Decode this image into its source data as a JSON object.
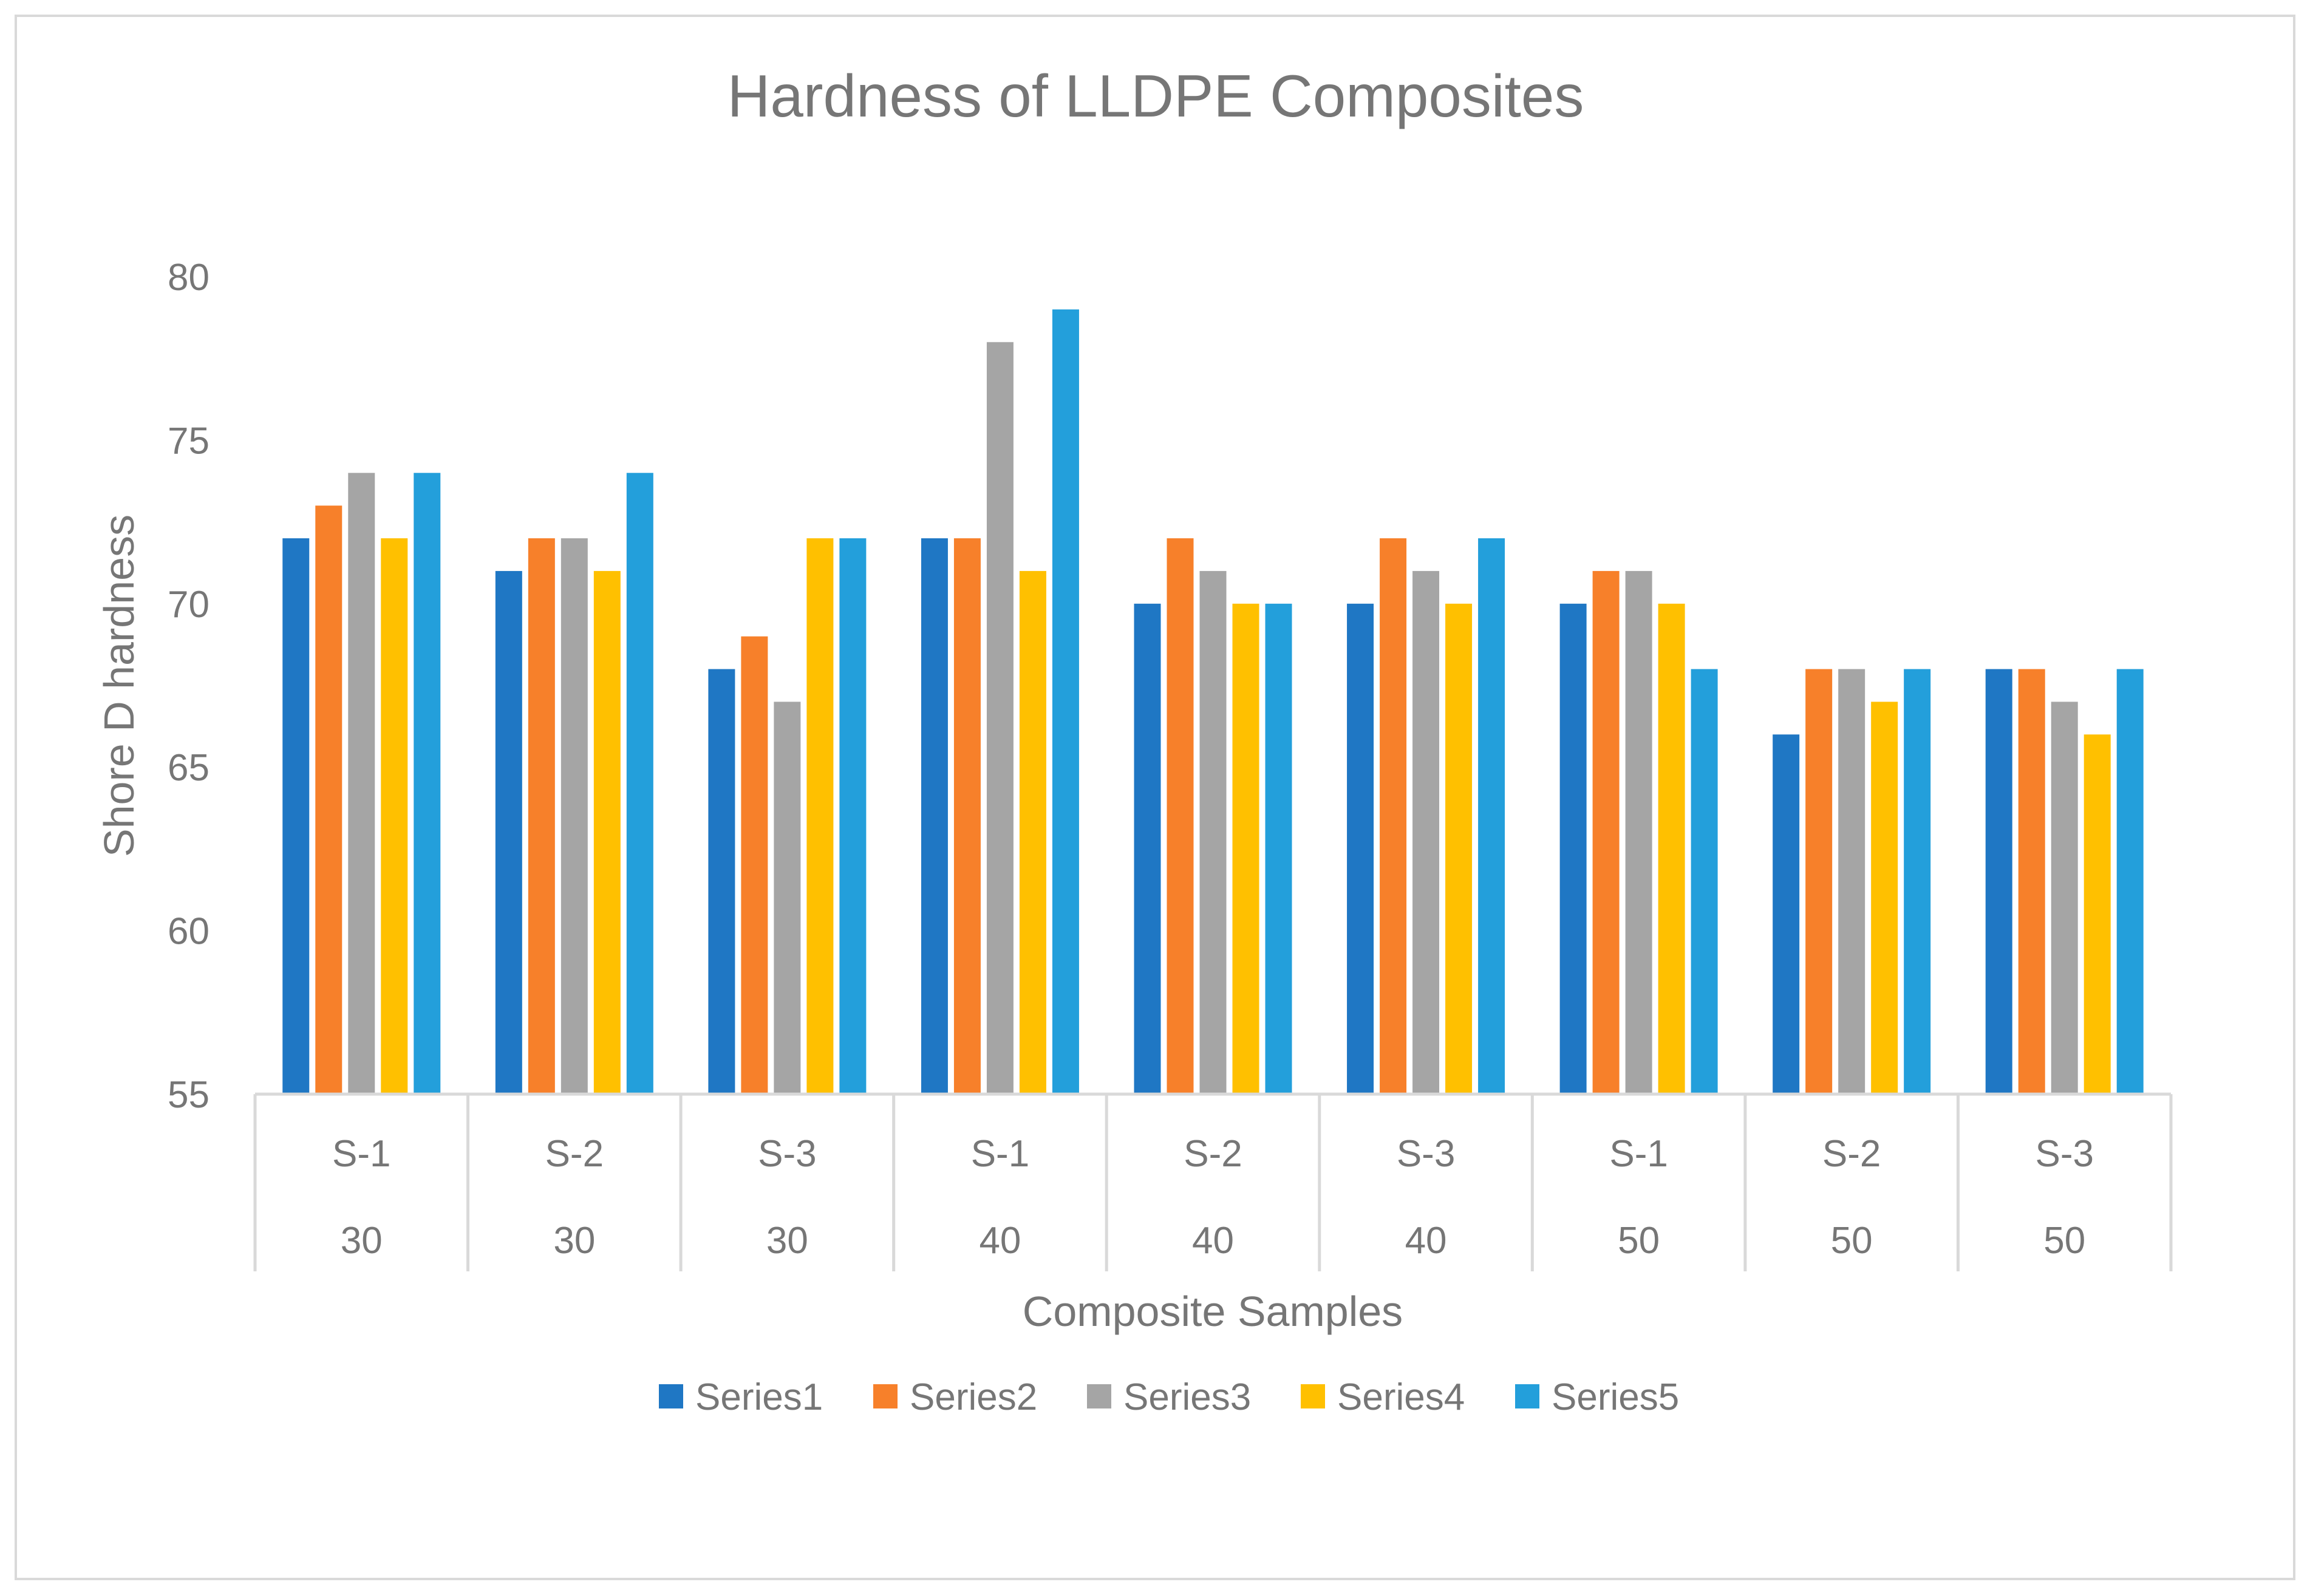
{
  "chart_data": {
    "type": "bar",
    "title": "Hardness of LLDPE Composites",
    "xlabel": "Composite Samples",
    "ylabel": "Shore D hardness",
    "ylim": [
      55,
      80
    ],
    "yticks": [
      55,
      60,
      65,
      70,
      75,
      80
    ],
    "categories": [
      {
        "sample": "S-1",
        "group": "30"
      },
      {
        "sample": "S-2",
        "group": "30"
      },
      {
        "sample": "S-3",
        "group": "30"
      },
      {
        "sample": "S-1",
        "group": "40"
      },
      {
        "sample": "S-2",
        "group": "40"
      },
      {
        "sample": "S-3",
        "group": "40"
      },
      {
        "sample": "S-1",
        "group": "50"
      },
      {
        "sample": "S-2",
        "group": "50"
      },
      {
        "sample": "S-3",
        "group": "50"
      }
    ],
    "series": [
      {
        "name": "Series1",
        "color": "#1f77c4",
        "values": [
          72,
          71,
          68,
          72,
          70,
          70,
          70,
          66,
          68
        ]
      },
      {
        "name": "Series2",
        "color": "#f7802a",
        "values": [
          73,
          72,
          69,
          72,
          72,
          72,
          71,
          68,
          68
        ]
      },
      {
        "name": "Series3",
        "color": "#a5a5a5",
        "values": [
          74,
          72,
          67,
          78,
          71,
          71,
          71,
          68,
          67
        ]
      },
      {
        "name": "Series4",
        "color": "#ffc000",
        "values": [
          72,
          71,
          72,
          71,
          70,
          70,
          70,
          67,
          66
        ]
      },
      {
        "name": "Series5",
        "color": "#239fdb",
        "values": [
          74,
          74,
          72,
          79,
          70,
          72,
          68,
          68,
          68
        ]
      }
    ],
    "grid": false,
    "legend_position": "bottom"
  }
}
